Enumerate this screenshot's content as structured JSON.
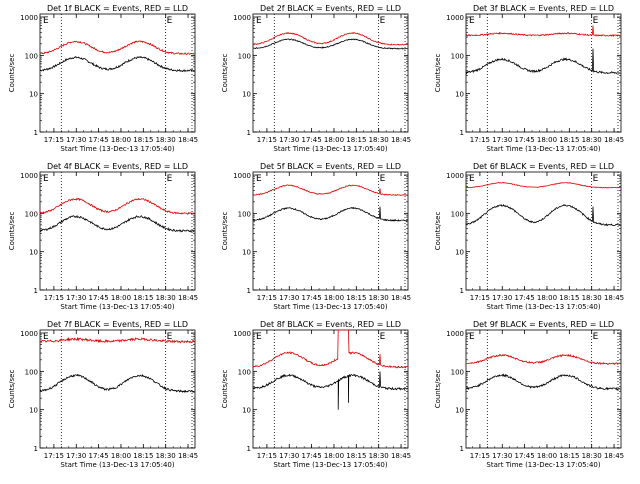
{
  "colors": {
    "events": "#000000",
    "lld": "#e00000",
    "axis": "#000000",
    "background": "#ffffff"
  },
  "shared": {
    "ylabel": "Counts/sec",
    "xlabel": "Start Time (13-Dec-13 17:05:40)",
    "xticks": [
      "17:15",
      "17:30",
      "17:45",
      "18:00",
      "18:15",
      "18:30",
      "18:45"
    ],
    "yticks": [
      "1",
      "10",
      "100",
      "1000"
    ],
    "marker_label": "E"
  },
  "chart_data": [
    {
      "type": "line",
      "title": "Det 1f BLACK = Events, RED = LLD",
      "x_range_minutes": [
        0,
        104
      ],
      "ylim": [
        1,
        1200
      ],
      "yscale": "log",
      "markers_x_minutes": [
        14.3,
        84.3
      ],
      "series": [
        {
          "name": "Events",
          "profile": {
            "base": 40,
            "amp": 60,
            "noise": 0.06
          }
        },
        {
          "name": "LLD",
          "profile": {
            "base": 110,
            "amp": 150,
            "noise": 0.05
          }
        }
      ]
    },
    {
      "type": "line",
      "title": "Det 2f BLACK = Events, RED = LLD",
      "x_range_minutes": [
        0,
        104
      ],
      "ylim": [
        1,
        1200
      ],
      "yscale": "log",
      "markers_x_minutes": [
        14.3,
        84.3
      ],
      "series": [
        {
          "name": "Events",
          "profile": {
            "base": 150,
            "amp": 140,
            "noise": 0.03
          }
        },
        {
          "name": "LLD",
          "profile": {
            "base": 190,
            "amp": 240,
            "noise": 0.03
          }
        }
      ]
    },
    {
      "type": "line",
      "title": "Det 3f BLACK = Events, RED = LLD",
      "x_range_minutes": [
        0,
        104
      ],
      "ylim": [
        1,
        1200
      ],
      "yscale": "log",
      "markers_x_minutes": [
        14.3,
        84.3
      ],
      "series": [
        {
          "name": "Events",
          "profile": {
            "base": 35,
            "amp": 55,
            "noise": 0.06,
            "spike": 150
          }
        },
        {
          "name": "LLD",
          "profile": {
            "base": 330,
            "amp": 60,
            "noise": 0.04,
            "spike": 600
          }
        }
      ]
    },
    {
      "type": "line",
      "title": "Det 4f BLACK = Events, RED = LLD",
      "x_range_minutes": [
        0,
        104
      ],
      "ylim": [
        1,
        1200
      ],
      "yscale": "log",
      "markers_x_minutes": [
        14.3,
        84.3
      ],
      "series": [
        {
          "name": "Events",
          "profile": {
            "base": 35,
            "amp": 60,
            "noise": 0.06
          }
        },
        {
          "name": "LLD",
          "profile": {
            "base": 100,
            "amp": 170,
            "noise": 0.05
          }
        }
      ]
    },
    {
      "type": "line",
      "title": "Det 5f BLACK = Events, RED = LLD",
      "x_range_minutes": [
        0,
        104
      ],
      "ylim": [
        1,
        1200
      ],
      "yscale": "log",
      "markers_x_minutes": [
        14.3,
        84.3
      ],
      "series": [
        {
          "name": "Events",
          "profile": {
            "base": 65,
            "amp": 90,
            "noise": 0.04,
            "spike": 150
          }
        },
        {
          "name": "LLD",
          "profile": {
            "base": 300,
            "amp": 300,
            "noise": 0.03,
            "spike": 450
          }
        }
      ]
    },
    {
      "type": "line",
      "title": "Det 6f BLACK = Events, RED = LLD",
      "x_range_minutes": [
        0,
        104
      ],
      "ylim": [
        1,
        1200
      ],
      "yscale": "log",
      "markers_x_minutes": [
        14.3,
        84.3
      ],
      "series": [
        {
          "name": "Events",
          "profile": {
            "base": 50,
            "amp": 140,
            "noise": 0.05,
            "spike": 150
          }
        },
        {
          "name": "LLD",
          "profile": {
            "base": 470,
            "amp": 200,
            "noise": 0.02
          }
        }
      ]
    },
    {
      "type": "line",
      "title": "Det 7f BLACK = Events, RED = LLD",
      "x_range_minutes": [
        0,
        104
      ],
      "ylim": [
        1,
        1200
      ],
      "yscale": "log",
      "markers_x_minutes": [
        14.3,
        84.3
      ],
      "series": [
        {
          "name": "Events",
          "profile": {
            "base": 30,
            "amp": 60,
            "noise": 0.06
          }
        },
        {
          "name": "LLD",
          "profile": {
            "base": 600,
            "amp": 120,
            "noise": 0.07
          }
        }
      ]
    },
    {
      "type": "line",
      "title": "Det 8f BLACK = Events, RED = LLD",
      "x_range_minutes": [
        0,
        104
      ],
      "ylim": [
        1,
        1200
      ],
      "yscale": "log",
      "markers_x_minutes": [
        14.3,
        84.3
      ],
      "series": [
        {
          "name": "Events",
          "profile": {
            "base": 35,
            "amp": 55,
            "noise": 0.06,
            "spike": 100,
            "dip": 10
          }
        },
        {
          "name": "LLD",
          "profile": {
            "base": 130,
            "amp": 220,
            "noise": 0.05,
            "spike": 280,
            "burst": 1200
          }
        }
      ]
    },
    {
      "type": "line",
      "title": "Det 9f BLACK = Events, RED = LLD",
      "x_range_minutes": [
        0,
        104
      ],
      "ylim": [
        1,
        1200
      ],
      "yscale": "log",
      "markers_x_minutes": [
        14.3,
        84.3
      ],
      "series": [
        {
          "name": "Events",
          "profile": {
            "base": 35,
            "amp": 55,
            "noise": 0.06
          }
        },
        {
          "name": "LLD",
          "profile": {
            "base": 160,
            "amp": 130,
            "noise": 0.05
          }
        }
      ]
    }
  ]
}
